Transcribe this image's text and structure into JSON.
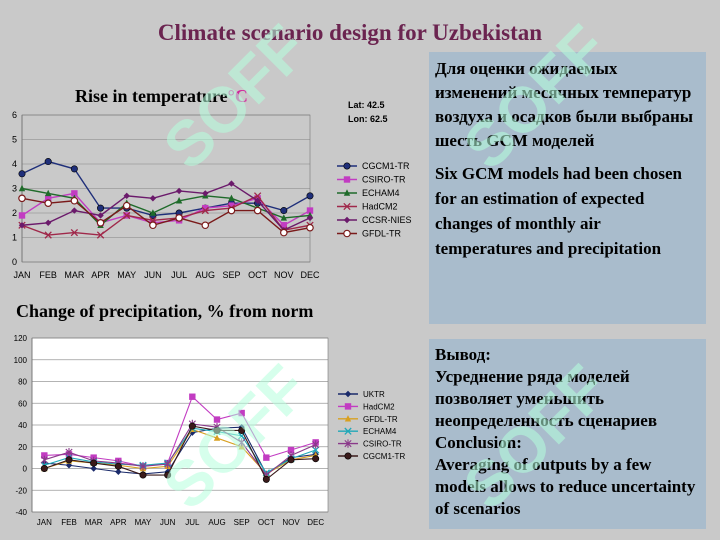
{
  "slide": {
    "title": "Climate scenario design for Uzbekistan",
    "lat": "Lat: 42.5",
    "lon": "Lon: 62.5"
  },
  "box_top": {
    "ru": "Для оценки ожидаемых изменений месячных температур воздуха и осадков  были выбраны шесть GCM моделей",
    "en": "Six GCM models had been chosen for an estimation of expected changes of monthly air temperatures and precipitation"
  },
  "box_bottom": {
    "ru_title": "Вывод:",
    "ru_text": "Усреднение ряда моделей позволяет уменьшить неопределенность сценариев",
    "en_title": "Conclusion:",
    "en_text": "Averaging of outputs by a few models allows to reduce uncertainty of scenarios"
  },
  "watermark": {
    "text": "SOFF"
  },
  "chart_data": [
    {
      "type": "line",
      "title": "Rise in temperature",
      "title_unit": "°C",
      "categories": [
        "JAN",
        "FEB",
        "MAR",
        "APR",
        "MAY",
        "JUN",
        "JUL",
        "AUG",
        "SEP",
        "OCT",
        "NOV",
        "DEC"
      ],
      "ylim": [
        0,
        6
      ],
      "yticks": [
        0,
        1,
        2,
        3,
        4,
        5,
        6
      ],
      "grid": true,
      "legend": "right",
      "series": [
        {
          "name": "CGCM1-TR",
          "color": "#1f2f7a",
          "marker": "circle",
          "values": [
            3.6,
            4.1,
            3.8,
            2.2,
            2.2,
            1.9,
            2.0,
            2.2,
            2.4,
            2.4,
            2.1,
            2.7
          ]
        },
        {
          "name": "CSIRO-TR",
          "color": "#c23cc2",
          "marker": "square",
          "values": [
            1.9,
            2.6,
            2.8,
            1.6,
            1.9,
            1.6,
            1.7,
            2.2,
            2.3,
            2.6,
            1.5,
            2.1
          ]
        },
        {
          "name": "ECHAM4",
          "color": "#1f6b2a",
          "marker": "triangle",
          "values": [
            3.0,
            2.8,
            2.6,
            1.5,
            2.4,
            2.0,
            2.5,
            2.7,
            2.6,
            2.2,
            1.8,
            1.9
          ]
        },
        {
          "name": "HadCM2",
          "color": "#a0284a",
          "marker": "x",
          "values": [
            1.5,
            1.1,
            1.2,
            1.1,
            1.9,
            1.7,
            1.8,
            2.1,
            2.2,
            2.7,
            1.3,
            1.5
          ]
        },
        {
          "name": "CCSR-NIES",
          "color": "#6b1a6b",
          "marker": "diamond",
          "values": [
            1.5,
            1.6,
            2.1,
            1.9,
            2.7,
            2.6,
            2.9,
            2.8,
            3.2,
            2.5,
            1.3,
            1.8
          ]
        },
        {
          "name": "GFDL-TR",
          "color": "#7a1a1a",
          "marker": "open-circle",
          "values": [
            2.6,
            2.4,
            2.5,
            1.6,
            2.3,
            1.5,
            1.8,
            1.5,
            2.1,
            2.1,
            1.2,
            1.4
          ]
        }
      ]
    },
    {
      "type": "line",
      "title": "Change of precipitation, % from norm",
      "categories": [
        "JAN",
        "FEB",
        "MAR",
        "APR",
        "MAY",
        "JUN",
        "JUL",
        "AUG",
        "SEP",
        "OCT",
        "NOV",
        "DEC"
      ],
      "ylim": [
        -40,
        120
      ],
      "yticks": [
        -40,
        -20,
        0,
        20,
        40,
        60,
        80,
        100,
        120
      ],
      "grid": true,
      "legend": "right",
      "series": [
        {
          "name": "UKTR",
          "color": "#1a2a6a",
          "marker": "diamond",
          "values": [
            5,
            3,
            0,
            -3,
            -5,
            -3,
            33,
            37,
            38,
            -5,
            10,
            13
          ]
        },
        {
          "name": "HadCM2",
          "color": "#c23cc2",
          "marker": "square",
          "values": [
            12,
            13,
            10,
            7,
            2,
            5,
            66,
            45,
            51,
            10,
            17,
            24
          ]
        },
        {
          "name": "GFDL-TR",
          "color": "#d8a020",
          "marker": "triangle",
          "values": [
            0,
            7,
            5,
            3,
            0,
            2,
            36,
            28,
            20,
            -5,
            8,
            12
          ]
        },
        {
          "name": "ECHAM4",
          "color": "#20a8b8",
          "marker": "x",
          "values": [
            3,
            10,
            6,
            4,
            3,
            5,
            37,
            34,
            30,
            -4,
            9,
            17
          ]
        },
        {
          "name": "CSIRO-TR",
          "color": "#8a3a8a",
          "marker": "star",
          "values": [
            8,
            15,
            7,
            5,
            2,
            4,
            41,
            38,
            24,
            -6,
            12,
            22
          ]
        },
        {
          "name": "CGCM1-TR",
          "color": "#3a1a1a",
          "marker": "circle",
          "values": [
            0,
            8,
            5,
            2,
            -6,
            -6,
            39,
            35,
            35,
            -10,
            8,
            9
          ]
        }
      ]
    }
  ]
}
